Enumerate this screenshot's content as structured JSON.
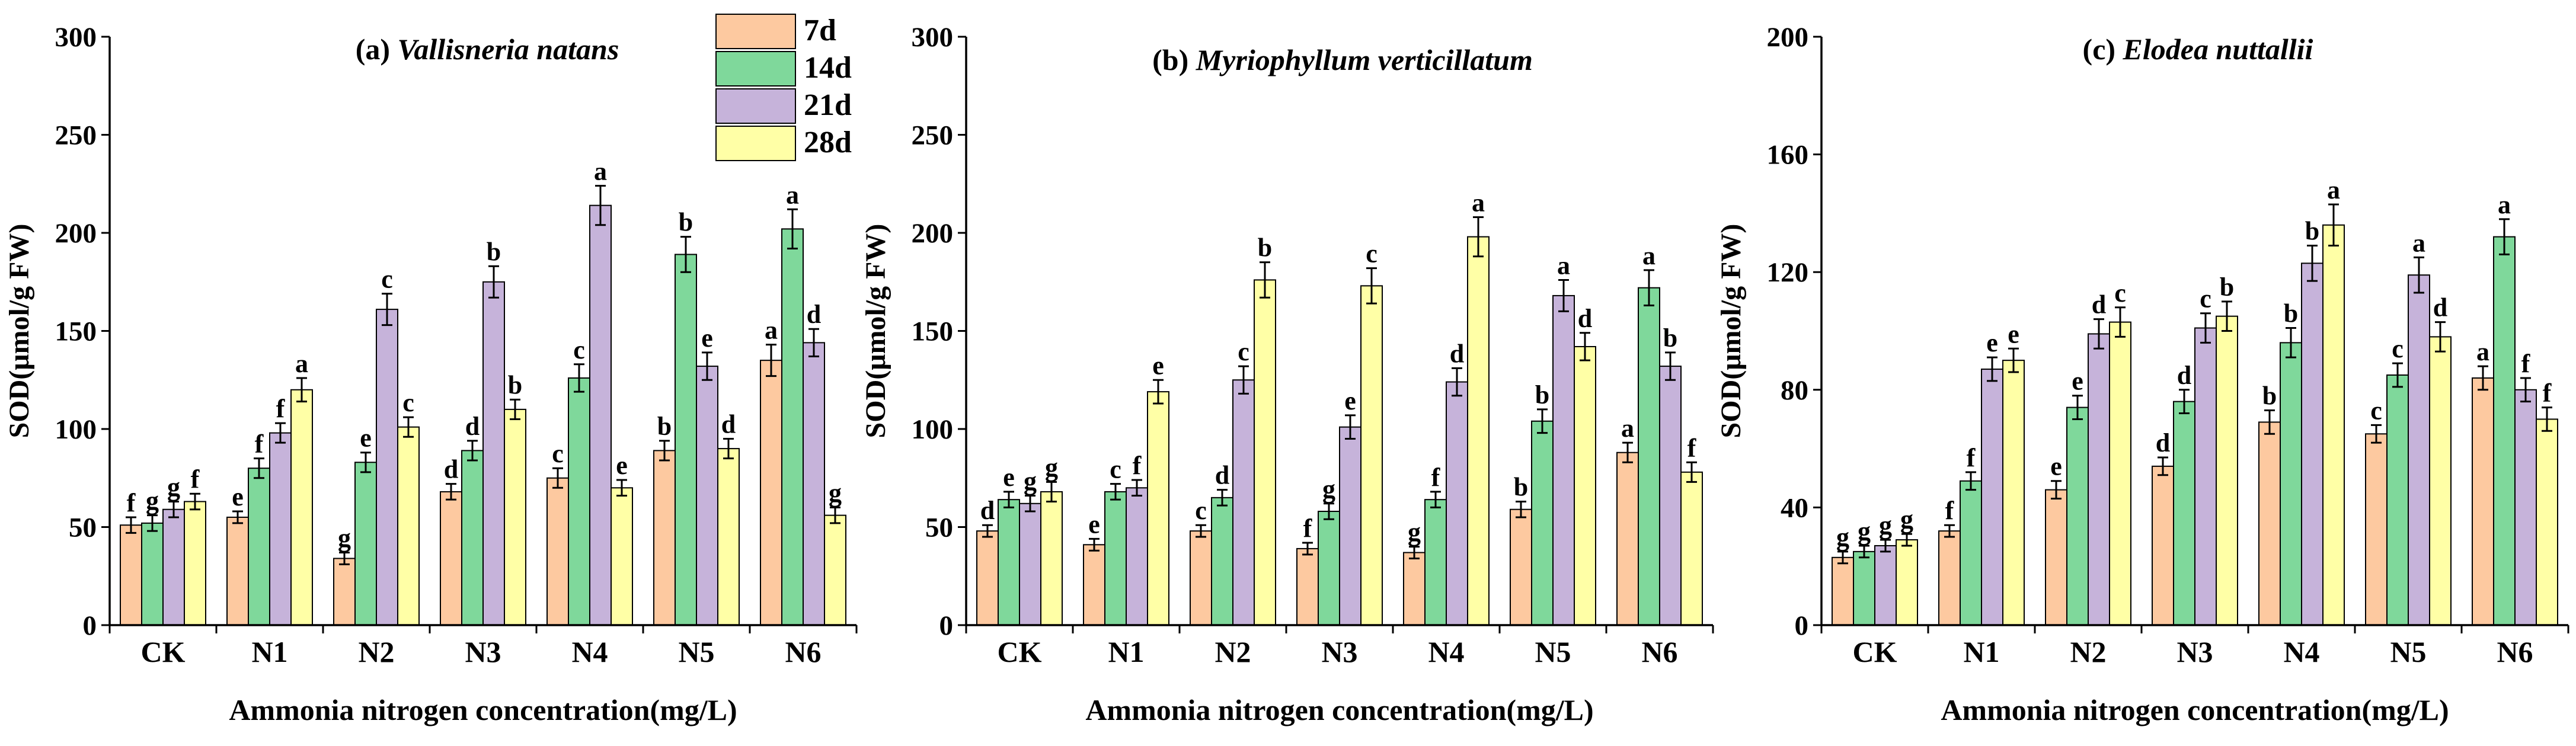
{
  "chart_data": [
    {
      "type": "bar",
      "title_prefix": "(a) ",
      "title_species": "Vallisneria natans",
      "ylabel": "SOD(μmol/g FW)",
      "xlabel": "Ammonia nitrogen concentration(mg/L)",
      "ylim": [
        0,
        300
      ],
      "yticks": [
        0,
        50,
        100,
        150,
        200,
        250,
        300
      ],
      "categories": [
        "CK",
        "N1",
        "N2",
        "N3",
        "N4",
        "N5",
        "N6"
      ],
      "series": [
        {
          "name": "7d",
          "values": [
            51,
            55,
            34,
            68,
            75,
            89,
            135
          ],
          "errors": [
            4,
            3,
            3,
            4,
            5,
            5,
            8
          ],
          "letters": [
            "f",
            "e",
            "g",
            "d",
            "c",
            "b",
            "a"
          ]
        },
        {
          "name": "14d",
          "values": [
            52,
            80,
            83,
            89,
            126,
            189,
            202
          ],
          "errors": [
            4,
            5,
            5,
            5,
            7,
            9,
            10
          ],
          "letters": [
            "g",
            "f",
            "e",
            "d",
            "c",
            "b",
            "a"
          ]
        },
        {
          "name": "21d",
          "values": [
            59,
            98,
            161,
            175,
            214,
            132,
            144
          ],
          "errors": [
            4,
            5,
            8,
            8,
            10,
            7,
            7
          ],
          "letters": [
            "g",
            "f",
            "c",
            "b",
            "a",
            "e",
            "d"
          ]
        },
        {
          "name": "28d",
          "values": [
            63,
            120,
            101,
            110,
            70,
            90,
            56
          ],
          "errors": [
            4,
            6,
            5,
            5,
            4,
            5,
            4
          ],
          "letters": [
            "f",
            "a",
            "c",
            "b",
            "e",
            "d",
            "g"
          ]
        }
      ]
    },
    {
      "type": "bar",
      "title_prefix": "(b) ",
      "title_species": "Myriophyllum verticillatum",
      "ylabel": "SOD(μmol/g FW)",
      "xlabel": "Ammonia nitrogen concentration(mg/L)",
      "ylim": [
        0,
        300
      ],
      "yticks": [
        0,
        50,
        100,
        150,
        200,
        250,
        300
      ],
      "categories": [
        "CK",
        "N1",
        "N2",
        "N3",
        "N4",
        "N5",
        "N6"
      ],
      "series": [
        {
          "name": "7d",
          "values": [
            48,
            41,
            48,
            39,
            37,
            59,
            88
          ],
          "errors": [
            3,
            3,
            3,
            3,
            3,
            4,
            5
          ],
          "letters": [
            "d",
            "e",
            "c",
            "f",
            "g",
            "b",
            "a"
          ]
        },
        {
          "name": "14d",
          "values": [
            64,
            68,
            65,
            58,
            64,
            104,
            172
          ],
          "errors": [
            4,
            4,
            4,
            4,
            4,
            6,
            9
          ],
          "letters": [
            "e",
            "c",
            "d",
            "g",
            "f",
            "b",
            "a"
          ]
        },
        {
          "name": "21d",
          "values": [
            62,
            70,
            125,
            101,
            124,
            168,
            132
          ],
          "errors": [
            4,
            4,
            7,
            6,
            7,
            8,
            7
          ],
          "letters": [
            "g",
            "f",
            "c",
            "e",
            "d",
            "a",
            "b"
          ]
        },
        {
          "name": "28d",
          "values": [
            68,
            119,
            176,
            173,
            198,
            142,
            78
          ],
          "errors": [
            5,
            6,
            9,
            9,
            10,
            7,
            5
          ],
          "letters": [
            "g",
            "e",
            "b",
            "c",
            "a",
            "d",
            "f"
          ]
        }
      ]
    },
    {
      "type": "bar",
      "title_prefix": "(c) ",
      "title_species": "Elodea nuttallii",
      "ylabel": "SOD(μmol/g FW)",
      "xlabel": "Ammonia nitrogen concentration(mg/L)",
      "ylim": [
        0,
        200
      ],
      "yticks": [
        0,
        40,
        80,
        120,
        160,
        200
      ],
      "categories": [
        "CK",
        "N1",
        "N2",
        "N3",
        "N4",
        "N5",
        "N6"
      ],
      "series": [
        {
          "name": "7d",
          "values": [
            23,
            32,
            46,
            54,
            69,
            65,
            84
          ],
          "errors": [
            2,
            2,
            3,
            3,
            4,
            3,
            4
          ],
          "letters": [
            "g",
            "f",
            "e",
            "d",
            "b",
            "c",
            "a"
          ]
        },
        {
          "name": "14d",
          "values": [
            25,
            49,
            74,
            76,
            96,
            85,
            132
          ],
          "errors": [
            2,
            3,
            4,
            4,
            5,
            4,
            6
          ],
          "letters": [
            "g",
            "f",
            "e",
            "d",
            "b",
            "c",
            "a"
          ]
        },
        {
          "name": "21d",
          "values": [
            27,
            87,
            99,
            101,
            123,
            119,
            80
          ],
          "errors": [
            2,
            4,
            5,
            5,
            6,
            6,
            4
          ],
          "letters": [
            "g",
            "e",
            "d",
            "c",
            "b",
            "a",
            "f"
          ]
        },
        {
          "name": "28d",
          "values": [
            29,
            90,
            103,
            105,
            136,
            98,
            70
          ],
          "errors": [
            2,
            4,
            5,
            5,
            7,
            5,
            4
          ],
          "letters": [
            "g",
            "e",
            "c",
            "b",
            "a",
            "d",
            "f"
          ]
        }
      ]
    }
  ],
  "legend": {
    "items": [
      "7d",
      "14d",
      "21d",
      "28d"
    ],
    "colors": [
      "#FDC9A0",
      "#7FD89B",
      "#C6B3DA",
      "#FFFFA6"
    ]
  },
  "colors": {
    "bar_stroke": "#000000",
    "axis": "#000000"
  }
}
